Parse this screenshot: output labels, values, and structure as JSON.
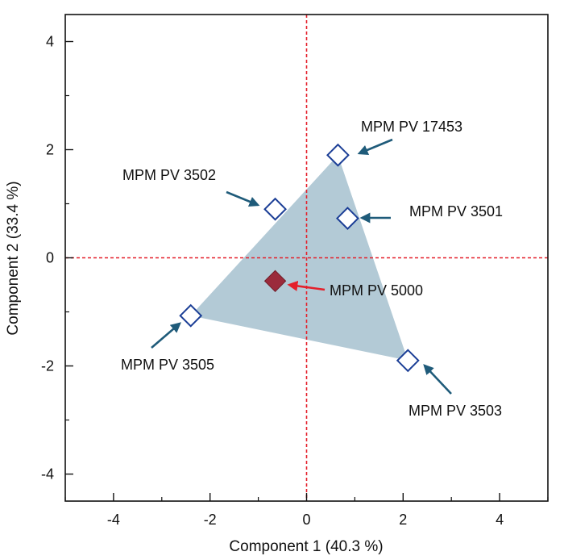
{
  "chart_data": {
    "type": "scatter",
    "xlabel": "Component 1  (40.3 %)",
    "ylabel": "Component 2  (33.4 %)",
    "xlim": [
      -5,
      5
    ],
    "ylim": [
      -4.5,
      4.5
    ],
    "xticks": [
      -4,
      -2,
      0,
      2,
      4
    ],
    "yticks": [
      -4,
      -2,
      0,
      2,
      4
    ],
    "x_tick_labels": [
      "-4",
      "-2",
      "0",
      "2",
      "4"
    ],
    "y_tick_labels": [
      "-4",
      "-2",
      "0",
      "2",
      "4"
    ],
    "reference_lines": {
      "x": 0,
      "y": 0,
      "color": "#e4202b",
      "style": "dashed"
    },
    "hull": {
      "fill": "#b3cad6",
      "points": [
        [
          0.65,
          1.9
        ],
        [
          2.1,
          -1.9
        ],
        [
          -2.4,
          -1.07
        ]
      ]
    },
    "points": [
      {
        "label": "MPM PV 17453",
        "x": 0.65,
        "y": 1.9,
        "marker": "open-diamond",
        "color": "#1b3e96"
      },
      {
        "label": "MPM PV 3502",
        "x": -0.65,
        "y": 0.9,
        "marker": "open-diamond",
        "color": "#1b3e96"
      },
      {
        "label": "MPM PV 3501",
        "x": 0.85,
        "y": 0.73,
        "marker": "open-diamond",
        "color": "#1b3e96"
      },
      {
        "label": "MPM PV 5000",
        "x": -0.65,
        "y": -0.43,
        "marker": "filled-diamond",
        "color": "#9b2a3b"
      },
      {
        "label": "MPM PV 3505",
        "x": -2.4,
        "y": -1.07,
        "marker": "open-diamond",
        "color": "#1b3e96"
      },
      {
        "label": "MPM PV 3503",
        "x": 2.1,
        "y": -1.9,
        "marker": "open-diamond",
        "color": "#1b3e96"
      }
    ],
    "arrow_colors": {
      "default": "#1f5b7a",
      "highlight": "#e4202b"
    }
  }
}
